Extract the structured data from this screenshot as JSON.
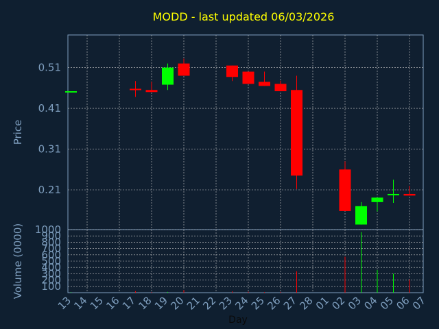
{
  "chart_data": [
    {
      "type": "candlestick",
      "title": "MODD - last updated 06/03/2026",
      "ylabel": "Price",
      "xlabel": "Day",
      "ylim": [
        0.1125,
        0.59
      ],
      "yticks": [
        "0.21",
        "0.31",
        "0.41",
        "0.51"
      ],
      "grid": true,
      "categories": [
        "13",
        "14",
        "15",
        "16",
        "17",
        "18",
        "19",
        "20",
        "21",
        "22",
        "23",
        "24",
        "25",
        "26",
        "27",
        "28",
        "01",
        "02",
        "03",
        "04",
        "05",
        "06",
        "07"
      ],
      "candles": [
        {
          "day": "13",
          "open": 0.452,
          "close": 0.452,
          "high": 0.452,
          "low": 0.452,
          "direction": "up"
        },
        {
          "day": "17",
          "open": 0.458,
          "close": 0.458,
          "high": 0.477,
          "low": 0.438,
          "direction": "down"
        },
        {
          "day": "18",
          "open": 0.455,
          "close": 0.45,
          "high": 0.475,
          "low": 0.45,
          "direction": "down"
        },
        {
          "day": "19",
          "open": 0.468,
          "close": 0.51,
          "high": 0.52,
          "low": 0.455,
          "direction": "up"
        },
        {
          "day": "20",
          "open": 0.52,
          "close": 0.49,
          "high": 0.532,
          "low": 0.49,
          "direction": "down"
        },
        {
          "day": "23",
          "open": 0.515,
          "close": 0.487,
          "high": 0.515,
          "low": 0.477,
          "direction": "down"
        },
        {
          "day": "24",
          "open": 0.5,
          "close": 0.47,
          "high": 0.5,
          "low": 0.47,
          "direction": "down"
        },
        {
          "day": "25",
          "open": 0.475,
          "close": 0.465,
          "high": 0.5,
          "low": 0.465,
          "direction": "down"
        },
        {
          "day": "26",
          "open": 0.47,
          "close": 0.452,
          "high": 0.478,
          "low": 0.452,
          "direction": "down"
        },
        {
          "day": "27",
          "open": 0.455,
          "close": 0.245,
          "high": 0.49,
          "low": 0.212,
          "direction": "down"
        },
        {
          "day": "02",
          "open": 0.26,
          "close": 0.158,
          "high": 0.28,
          "low": 0.158,
          "direction": "down"
        },
        {
          "day": "03",
          "open": 0.125,
          "close": 0.17,
          "high": 0.18,
          "low": 0.125,
          "direction": "up"
        },
        {
          "day": "04",
          "open": 0.18,
          "close": 0.191,
          "high": 0.191,
          "low": 0.157,
          "direction": "up"
        },
        {
          "day": "05",
          "open": 0.197,
          "close": 0.2,
          "high": 0.235,
          "low": 0.178,
          "direction": "up"
        },
        {
          "day": "06",
          "open": 0.2,
          "close": 0.196,
          "high": 0.22,
          "low": 0.196,
          "direction": "down"
        }
      ]
    },
    {
      "type": "bar",
      "ylabel": "Volume (0000)",
      "xlabel": "Day",
      "ylim": [
        0,
        1000
      ],
      "yticks": [
        "100",
        "200",
        "300",
        "400",
        "500",
        "600",
        "700",
        "800",
        "900",
        "1000"
      ],
      "grid": true,
      "categories": [
        "13",
        "14",
        "15",
        "16",
        "17",
        "18",
        "19",
        "20",
        "21",
        "22",
        "23",
        "24",
        "25",
        "26",
        "27",
        "28",
        "01",
        "02",
        "03",
        "04",
        "05",
        "06",
        "07"
      ],
      "bars": [
        {
          "day": "13",
          "value": 10,
          "direction": "up"
        },
        {
          "day": "17",
          "value": 25,
          "direction": "down"
        },
        {
          "day": "18",
          "value": 10,
          "direction": "down"
        },
        {
          "day": "19",
          "value": 12,
          "direction": "up"
        },
        {
          "day": "20",
          "value": 40,
          "direction": "down"
        },
        {
          "day": "23",
          "value": 20,
          "direction": "down"
        },
        {
          "day": "24",
          "value": 15,
          "direction": "down"
        },
        {
          "day": "25",
          "value": 10,
          "direction": "down"
        },
        {
          "day": "26",
          "value": 12,
          "direction": "down"
        },
        {
          "day": "27",
          "value": 340,
          "direction": "down"
        },
        {
          "day": "02",
          "value": 570,
          "direction": "down"
        },
        {
          "day": "03",
          "value": 960,
          "direction": "up"
        },
        {
          "day": "04",
          "value": 360,
          "direction": "up"
        },
        {
          "day": "05",
          "value": 300,
          "direction": "up"
        },
        {
          "day": "06",
          "value": 210,
          "direction": "down"
        }
      ]
    }
  ],
  "colors": {
    "background": "#0f1f30",
    "panel": "#101f30",
    "up": "#00ff00",
    "down": "#ff0000",
    "title": "#ffff00",
    "text": "#7f9fbf",
    "grid": "#c8c8c8"
  }
}
